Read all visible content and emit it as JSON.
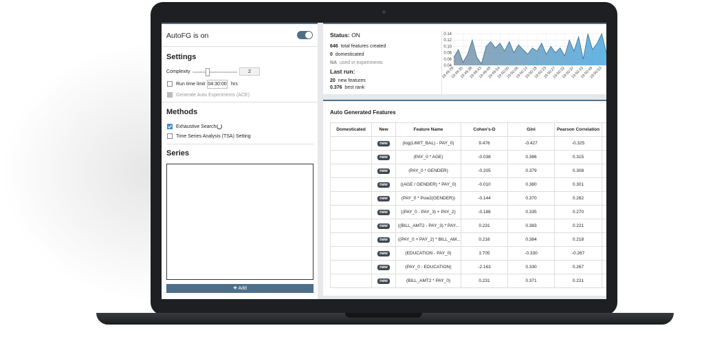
{
  "settings_panel": {
    "toggle_label": "AutoFG is on",
    "settings_heading": "Settings",
    "complexity_label": "Complexity",
    "complexity_value": "2",
    "run_time_label": "Run time limit",
    "run_time_value": "04:30:00",
    "run_time_unit": "hrs",
    "ace_label": "Generate Auto Experiments (ACE)",
    "methods_heading": "Methods",
    "method_exhaustive": "Exhaustive Search",
    "method_tsa": "Time Series Analysis (TSA) Setting",
    "series_heading": "Series",
    "add_button": "Add"
  },
  "status": {
    "status_label": "Status:",
    "status_value": "ON",
    "total_count": "646",
    "total_text": "total features created",
    "domesticated_count": "0",
    "domesticated_text": "domesticated",
    "experiments_count": "NA",
    "experiments_text": "used in experiments",
    "last_run_label": "Last run:",
    "new_count": "20",
    "new_text": "new features",
    "best_rank": "0.376",
    "best_rank_text": "best rank"
  },
  "chart": {
    "type": "area",
    "categories": [
      "19:49:29",
      null,
      "19:49:35",
      null,
      "19:49:38",
      null,
      "19:49:43",
      null,
      "19:49:48",
      null,
      "19:49:54",
      null,
      "19:50:00",
      null,
      "19:50:06",
      null,
      "19:50:14",
      null,
      "19:50:18",
      null,
      "19:50:23",
      null,
      "19:50:27",
      null,
      "19:50:32",
      null,
      "19:50:37",
      null,
      "19:50:43",
      null,
      "19:50:48",
      null,
      "19:50:53",
      null
    ],
    "values": [
      0.065,
      0.09,
      0.05,
      0.075,
      0.12,
      0.065,
      0.045,
      0.1,
      0.115,
      0.095,
      0.11,
      0.085,
      0.115,
      0.08,
      0.105,
      0.09,
      0.075,
      0.095,
      0.085,
      0.11,
      0.075,
      0.1,
      0.08,
      0.095,
      0.07,
      0.12,
      0.085,
      0.13,
      0.06,
      0.14,
      0.09,
      0.11,
      0.14,
      0.08
    ],
    "ylim": [
      0.04,
      0.14
    ],
    "yticks": [
      0.04,
      0.06,
      0.08,
      {
        "value": 0.1,
        "label": "0.10"
      },
      0.12,
      0.14
    ],
    "grid": true,
    "color": "#4aa8e0"
  },
  "features": {
    "title": "Auto Generated Features",
    "columns": [
      "Domesticated",
      "New",
      "Feature Name",
      "Cohen's-D",
      "Gini",
      "Pearson Correlation"
    ],
    "rows": [
      {
        "new": "new",
        "feature": "(log(LIMIT_BAL) - PAY_0)",
        "cohens_d": "9.476",
        "gini": "-0.427",
        "pearson": "-0.325"
      },
      {
        "new": "new",
        "feature": "(PAY_0 * AGE)",
        "cohens_d": "-0.038",
        "gini": "0.386",
        "pearson": "0.315"
      },
      {
        "new": "new",
        "feature": "(PAY_0 * GENDER)",
        "cohens_d": "-0.205",
        "gini": "0.379",
        "pearson": "0.308"
      },
      {
        "new": "new",
        "feature": "((AGE / GENDER) * PAY_0)",
        "cohens_d": "-0.010",
        "gini": "0.380",
        "pearson": "0.301"
      },
      {
        "new": "new",
        "feature": "(PAY_0 * Pow2(GENDER))",
        "cohens_d": "-0.144",
        "gini": "0.370",
        "pearson": "0.282"
      },
      {
        "new": "new",
        "feature": "((PAY_0 - PAY_3) + PAY_2)",
        "cohens_d": "-0.186",
        "gini": "0.335",
        "pearson": "0.270"
      },
      {
        "new": "new",
        "feature": "((BILL_AMT2 - PAY_3) * PAY...",
        "cohens_d": "0.231",
        "gini": "0.383",
        "pearson": "0.221"
      },
      {
        "new": "new",
        "feature": "((PAY_0 + PAY_2) * BILL_AM...",
        "cohens_d": "0.216",
        "gini": "0.384",
        "pearson": "0.218"
      },
      {
        "new": "new",
        "feature": "(EDUCATION - PAY_0)",
        "cohens_d": "1.705",
        "gini": "-0.330",
        "pearson": "-0.267"
      },
      {
        "new": "new",
        "feature": "(PAY_0 - EDUCATION)",
        "cohens_d": "-2.163",
        "gini": "0.330",
        "pearson": "0.267"
      },
      {
        "new": "new",
        "feature": "(BILL_AMT2 * PAY_0)",
        "cohens_d": "0.231",
        "gini": "0.371",
        "pearson": "0.221"
      }
    ]
  }
}
